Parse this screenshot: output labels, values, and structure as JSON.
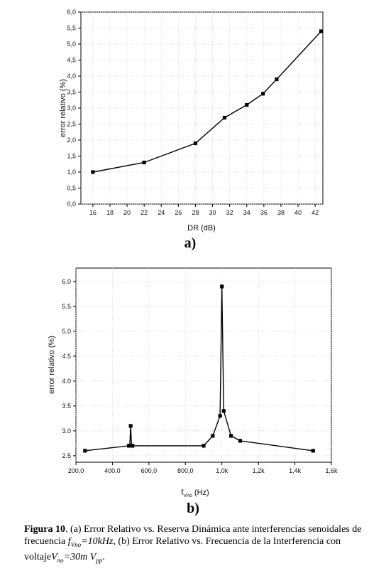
{
  "chart_data": [
    {
      "type": "line",
      "sublabel": "a)",
      "xlabel": "DR (dB)",
      "ylabel": "error relativo (%)",
      "xlim": [
        14.6,
        42.9
      ],
      "ylim": [
        0,
        6
      ],
      "xticks": [
        16,
        18,
        20,
        22,
        24,
        26,
        28,
        30,
        32,
        34,
        36,
        38,
        40,
        42
      ],
      "xtick_labels": [
        "16",
        "18",
        "20",
        "22",
        "24",
        "26",
        "28",
        "30",
        "32",
        "34",
        "36",
        "38",
        "40",
        "42"
      ],
      "yticks": [
        0,
        0.5,
        1,
        1.5,
        2,
        2.5,
        3,
        3.5,
        4,
        4.5,
        5,
        5.5,
        6
      ],
      "ytick_labels": [
        "0,0",
        "0,5",
        "1,0",
        "1,5",
        "2,0",
        "2,5",
        "3,0",
        "3,5",
        "4,0",
        "4,5",
        "5,0",
        "5,5",
        "6,0"
      ],
      "grid": true,
      "marker": "square",
      "x": [
        16,
        22,
        28,
        31.4,
        34,
        35.9,
        37.5,
        42.7
      ],
      "y": [
        1.0,
        1.3,
        1.9,
        2.7,
        3.1,
        3.45,
        3.9,
        5.4
      ]
    },
    {
      "type": "line",
      "sublabel": "b)",
      "xlabel": "f",
      "xlabel_sub": "Vno",
      "xlabel_unit": " (Hz)",
      "ylabel": "error relativo (%)",
      "xlim": [
        200,
        1600
      ],
      "ylim": [
        2.37,
        6.27
      ],
      "xticks": [
        200,
        400,
        600,
        800,
        1000,
        1200,
        1400,
        1600
      ],
      "xtick_labels": [
        "200,0",
        "400,0",
        "600,0",
        "800,0",
        "1,0k",
        "1,2k",
        "1,4k",
        "1,6k"
      ],
      "yticks": [
        2.5,
        3.0,
        3.5,
        4.0,
        4.5,
        5.0,
        5.5,
        6.0
      ],
      "ytick_labels": [
        "2.5",
        "3.0",
        "3.5",
        "4.0",
        "4.5",
        "5.0",
        "5.5",
        "6.0"
      ],
      "grid": true,
      "marker": "square",
      "x": [
        250,
        490,
        495,
        500,
        505,
        510,
        900,
        950,
        990,
        1000,
        1010,
        1050,
        1100,
        1500
      ],
      "y": [
        2.6,
        2.7,
        2.7,
        3.1,
        2.7,
        2.7,
        2.7,
        2.9,
        3.3,
        5.9,
        3.4,
        2.9,
        2.8,
        2.6
      ]
    }
  ],
  "caption": {
    "label": "Figura 10",
    "text_1": ". (a) Error Relativo vs. Reserva Dinámica ante interferencias senoidales de frecuencia ",
    "f_sym": "f",
    "f_sub": "Vno",
    "f_val": "=10kHz",
    "text_2": ", (b) Error Relativo vs. Frecuencia de la Interferencia con voltaje",
    "v_sym": "V",
    "v_sub": "no",
    "v_val": "=30m V",
    "v_unit_sub": "pp",
    "text_end": "."
  },
  "colors": {
    "line": "#000000",
    "grid": "#c8c8c8",
    "axis": "#000000"
  }
}
